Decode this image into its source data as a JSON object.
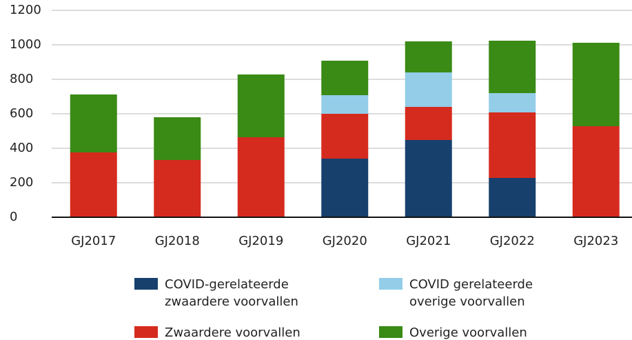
{
  "chart_data": {
    "type": "stacked_bar",
    "categories": [
      "GJ2017",
      "GJ2018",
      "GJ2019",
      "GJ2020",
      "GJ2021",
      "GJ2022",
      "GJ2023"
    ],
    "series": [
      {
        "name": "COVID-gerelateerde zwaardere voorvallen",
        "color": "#17406d",
        "values": [
          0,
          0,
          0,
          340,
          448,
          228,
          0
        ]
      },
      {
        "name": "Zwaardere voorvallen",
        "color": "#d52b1e",
        "values": [
          376,
          332,
          464,
          260,
          192,
          380,
          528
        ]
      },
      {
        "name": "COVID gerelateerde overige voorvallen",
        "color": "#93cde8",
        "values": [
          0,
          0,
          0,
          108,
          200,
          112,
          0
        ]
      },
      {
        "name": "Overige voorvallen",
        "color": "#3a8a16",
        "values": [
          336,
          248,
          364,
          200,
          180,
          304,
          484
        ]
      }
    ],
    "legend_order": [
      0,
      2,
      1,
      3
    ],
    "ylim": [
      0,
      1200
    ],
    "yticks": [
      0,
      200,
      400,
      600,
      800,
      1000,
      1200
    ],
    "grid": true
  }
}
